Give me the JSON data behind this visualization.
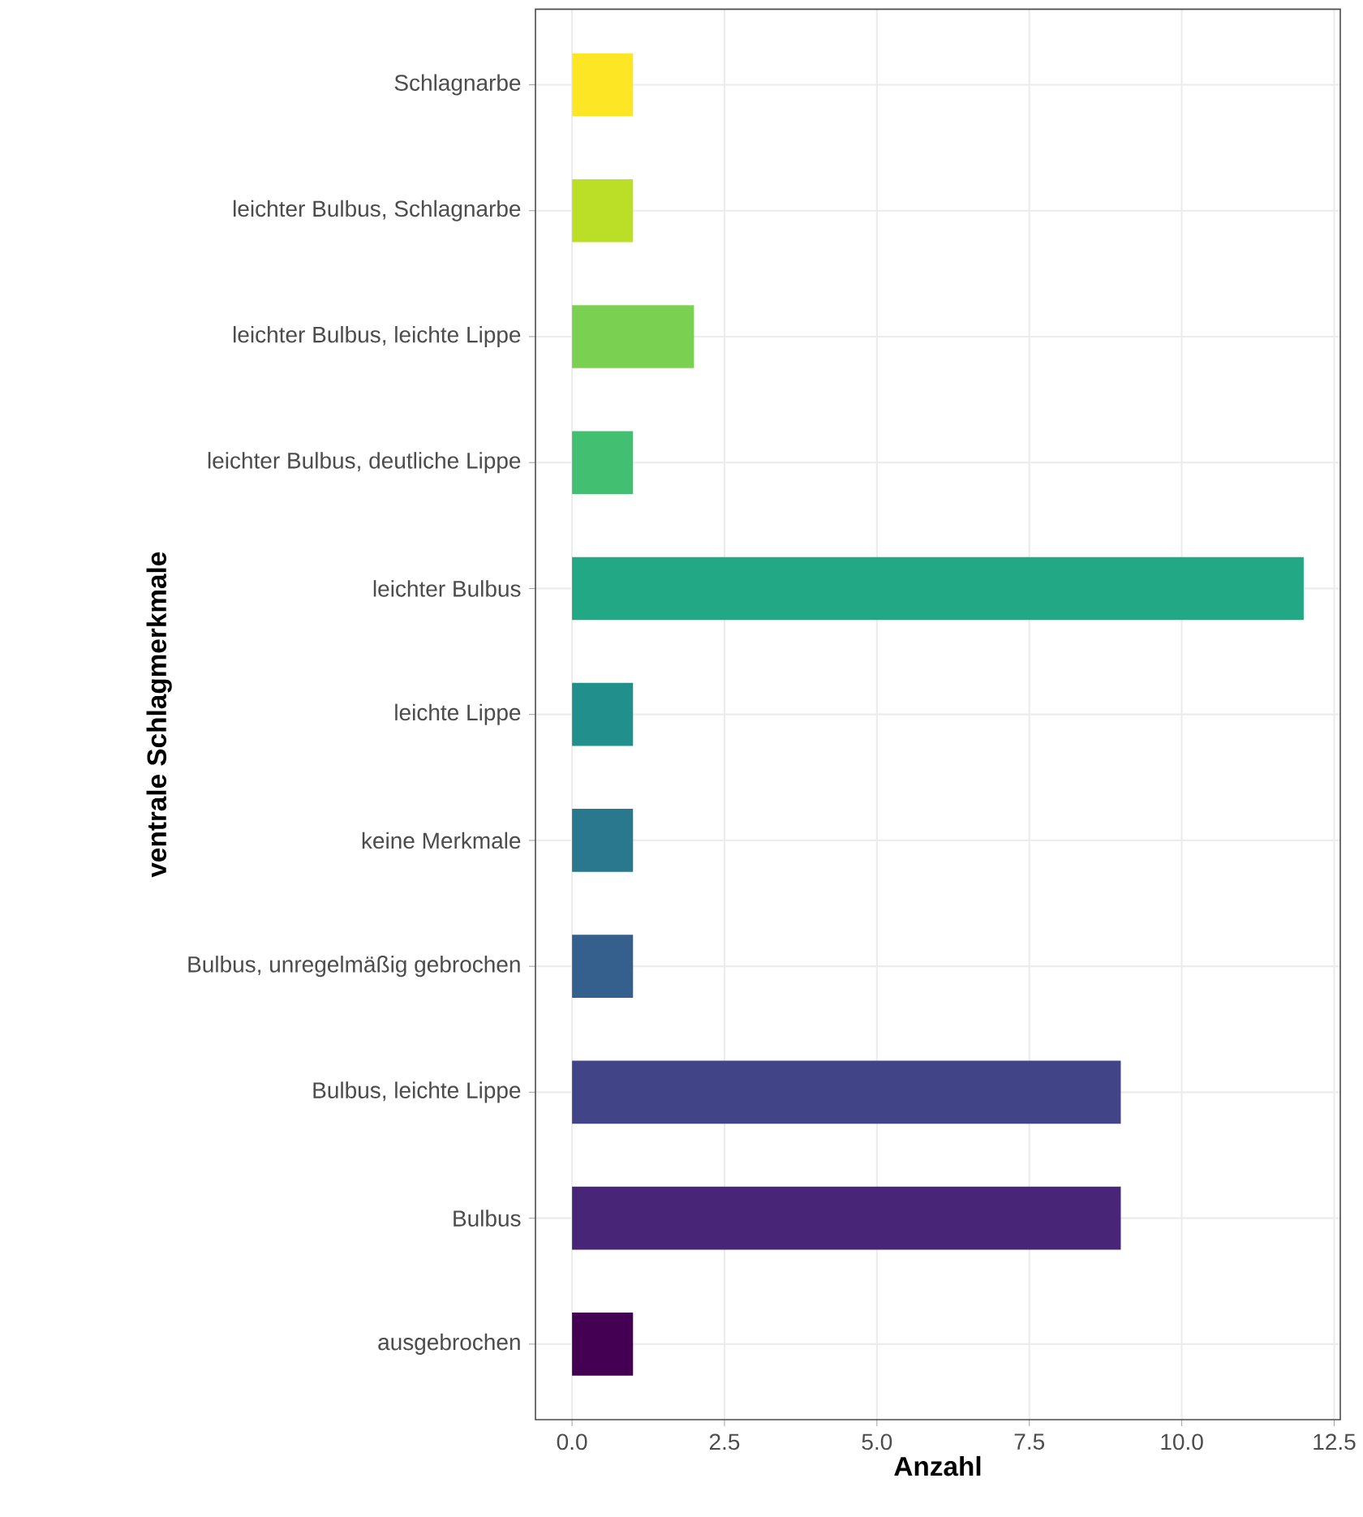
{
  "chart_data": {
    "type": "bar",
    "orientation": "horizontal",
    "xlabel": "Anzahl",
    "ylabel": "ventrale Schlagmerkmale",
    "categories": [
      "Schlagnarbe",
      "leichter Bulbus, Schlagnarbe",
      "leichter Bulbus, leichte Lippe",
      "leichter Bulbus, deutliche Lippe",
      "leichter Bulbus",
      "leichte Lippe",
      "keine Merkmale",
      "Bulbus, unregelmäßig gebrochen",
      "Bulbus, leichte Lippe",
      "Bulbus",
      "ausgebrochen"
    ],
    "values": [
      1,
      1,
      2,
      1,
      12,
      1,
      1,
      1,
      9,
      9,
      1
    ],
    "colors": [
      "#fde725",
      "#bbdf27",
      "#7ad151",
      "#43bf71",
      "#22a884",
      "#21908c",
      "#2a788e",
      "#35608d",
      "#414487",
      "#482576",
      "#440154"
    ],
    "xlim": [
      -0.6,
      12.6
    ],
    "xticks": [
      {
        "value": 0,
        "label": "0.0"
      },
      {
        "value": 2.5,
        "label": "2.5"
      },
      {
        "value": 5,
        "label": "5.0"
      },
      {
        "value": 7.5,
        "label": "7.5"
      },
      {
        "value": 10,
        "label": "10.0"
      },
      {
        "value": 12.5,
        "label": "12.5"
      }
    ],
    "grid": true
  }
}
